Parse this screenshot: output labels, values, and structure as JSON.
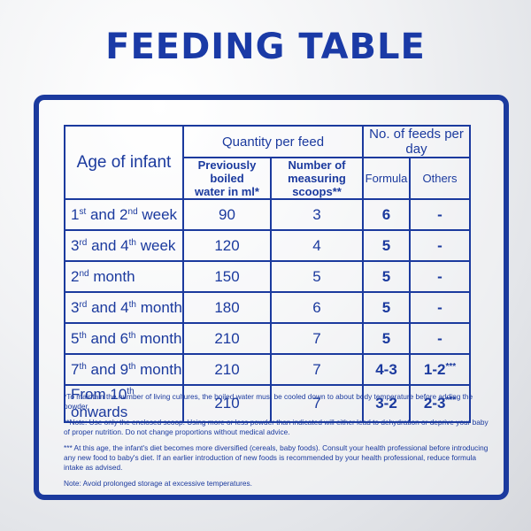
{
  "title": "FEEDING TABLE",
  "table": {
    "age_header": "Age of infant",
    "quantity_header": "Quantity per feed",
    "feeds_header": "No. of feeds per day",
    "water_header_line1": "Previously boiled",
    "water_header_line2": "water in ml*",
    "scoops_header_line1": "Number of",
    "scoops_header_line2": "measuring scoops**",
    "formula_header": "Formula",
    "others_header": "Others",
    "rows": [
      {
        "age_a": "1",
        "sup_a": "st",
        "mid": " and 2",
        "sup_b": "nd",
        "age_end": " week",
        "water": "90",
        "scoops": "3",
        "formula": "6",
        "others": "-",
        "others_sup": ""
      },
      {
        "age_a": "3",
        "sup_a": "rd",
        "mid": " and 4",
        "sup_b": "th",
        "age_end": " week",
        "water": "120",
        "scoops": "4",
        "formula": "5",
        "others": "-",
        "others_sup": ""
      },
      {
        "age_a": "2",
        "sup_a": "nd",
        "mid": " month",
        "sup_b": "",
        "age_end": "",
        "water": "150",
        "scoops": "5",
        "formula": "5",
        "others": "-",
        "others_sup": ""
      },
      {
        "age_a": "3",
        "sup_a": "rd",
        "mid": " and 4",
        "sup_b": "th",
        "age_end": " month",
        "water": "180",
        "scoops": "6",
        "formula": "5",
        "others": "-",
        "others_sup": ""
      },
      {
        "age_a": "5",
        "sup_a": "th",
        "mid": " and 6",
        "sup_b": "th",
        "age_end": " month",
        "water": "210",
        "scoops": "7",
        "formula": "5",
        "others": "-",
        "others_sup": ""
      },
      {
        "age_a": "7",
        "sup_a": "th",
        "mid": " and 9",
        "sup_b": "th",
        "age_end": " month",
        "water": "210",
        "scoops": "7",
        "formula": "4-3",
        "others": "1-2",
        "others_sup": "***"
      },
      {
        "age_a": "From 10",
        "sup_a": "th",
        "mid": " onwards",
        "sup_b": "",
        "age_end": "",
        "water": "210",
        "scoops": "7",
        "formula": "3-2",
        "others": "2-3",
        "others_sup": "***"
      }
    ]
  },
  "notes": [
    "*To maintain the number of living cultures, the boiled water must be cooled  down to about body temperature before adding the powder.",
    "**Note: Use only the enclosed scoop. Using more or less powder than indicated will either lead to dehydration or deprive your baby of proper nutrition. Do not change proportions without medical advice.",
    "*** At this age, the infant's diet becomes more diversified (cereals, baby foods). Consult your health professional before introducing any new food to baby's diet. If an earlier introduction of new foods is recommended by your health professional, reduce formula intake as advised.",
    "Note: Avoid prolonged storage at excessive temperatures."
  ]
}
